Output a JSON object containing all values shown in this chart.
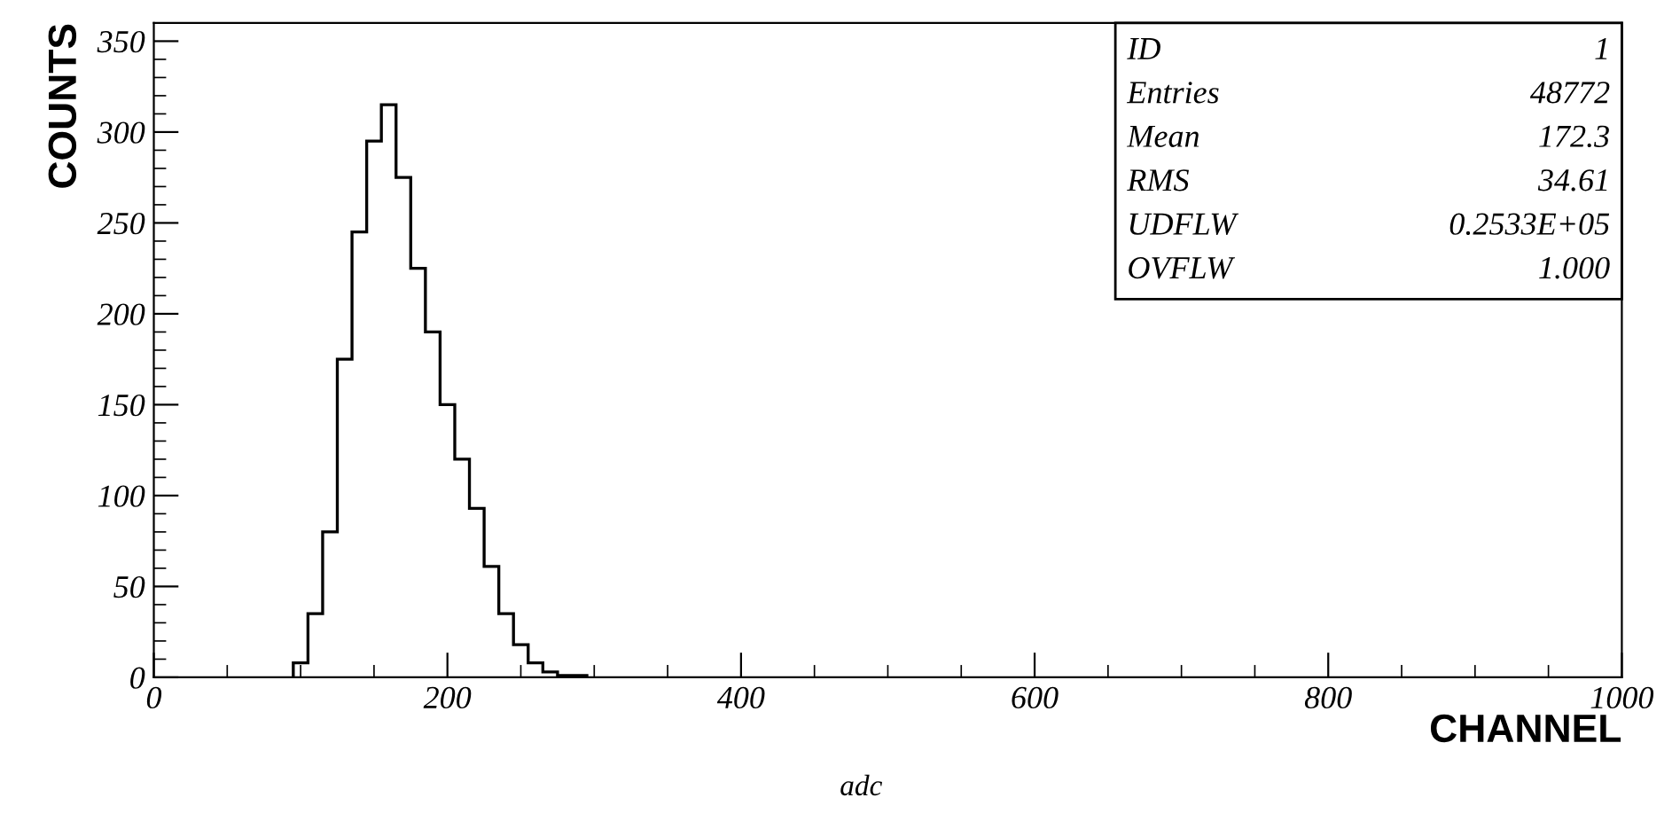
{
  "chart_data": {
    "type": "histogram",
    "xlabel": "CHANNEL",
    "ylabel": "COUNTS",
    "bins": [
      95,
      105,
      115,
      125,
      135,
      145,
      155,
      165,
      175,
      185,
      195,
      205,
      215,
      225,
      235,
      245,
      255,
      265,
      275,
      295
    ],
    "values": [
      8,
      35,
      80,
      175,
      245,
      295,
      315,
      275,
      225,
      190,
      150,
      120,
      93,
      61,
      35,
      18,
      8,
      3,
      1
    ],
    "color": "#000000",
    "xlim": [
      0,
      1000
    ],
    "ylim": [
      0,
      360
    ],
    "xticks": [
      0,
      200,
      400,
      600,
      800,
      1000
    ],
    "yticks": [
      0,
      50,
      100,
      150,
      200,
      250,
      300,
      350
    ],
    "grid": false,
    "legend": false,
    "annotations": [
      "ID",
      "1",
      "Entries",
      "48772",
      "Mean",
      "172.3",
      "RMS",
      "34.61",
      "UDFLW",
      "0.2533E+05",
      "OVFLW",
      "1.000",
      "adc"
    ]
  }
}
